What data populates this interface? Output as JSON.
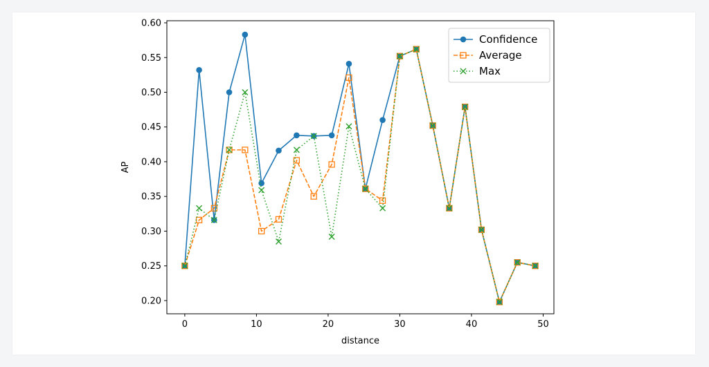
{
  "chart_data": {
    "type": "line",
    "xlabel": "distance",
    "ylabel": "AP",
    "xlim": [
      -2.5,
      51.5
    ],
    "ylim": [
      0.181,
      0.603
    ],
    "x_ticks": [
      0,
      10,
      20,
      30,
      40,
      50
    ],
    "y_ticks": [
      0.2,
      0.25,
      0.3,
      0.35,
      0.4,
      0.45,
      0.5,
      0.55,
      0.6
    ],
    "y_tick_labels": [
      "0.20",
      "0.25",
      "0.30",
      "0.35",
      "0.40",
      "0.45",
      "0.50",
      "0.55",
      "0.60"
    ],
    "grid": false,
    "legend_position": "top-right",
    "x": [
      0,
      2.0,
      4.1,
      6.2,
      8.4,
      10.7,
      13.1,
      15.6,
      18.0,
      20.5,
      22.9,
      25.2,
      27.6,
      30.0,
      32.3,
      34.6,
      36.9,
      39.1,
      41.4,
      43.9,
      46.4,
      48.9
    ],
    "series": [
      {
        "name": "Confidence",
        "color": "#1f77b4",
        "marker": "circle",
        "linestyle": "solid",
        "values": [
          0.25,
          0.532,
          0.316,
          0.5,
          0.583,
          0.369,
          0.416,
          0.438,
          0.437,
          0.438,
          0.541,
          0.361,
          0.46,
          0.552,
          0.562,
          0.452,
          0.333,
          0.479,
          0.302,
          0.198,
          0.255,
          0.25
        ]
      },
      {
        "name": "Average",
        "color": "#ff7f0e",
        "marker": "square-open",
        "linestyle": "dashed",
        "values": [
          0.25,
          0.316,
          0.333,
          0.417,
          0.417,
          0.3,
          0.317,
          0.402,
          0.35,
          0.396,
          0.521,
          0.361,
          0.344,
          0.552,
          0.562,
          0.452,
          0.333,
          0.479,
          0.302,
          0.198,
          0.255,
          0.25
        ]
      },
      {
        "name": "Max",
        "color": "#2ca02c",
        "marker": "x",
        "linestyle": "dotted",
        "values": [
          0.25,
          0.333,
          0.316,
          0.417,
          0.5,
          0.359,
          0.285,
          0.417,
          0.437,
          0.292,
          0.451,
          0.361,
          0.333,
          0.552,
          0.562,
          0.452,
          0.333,
          0.479,
          0.302,
          0.198,
          0.255,
          0.25
        ]
      }
    ]
  }
}
